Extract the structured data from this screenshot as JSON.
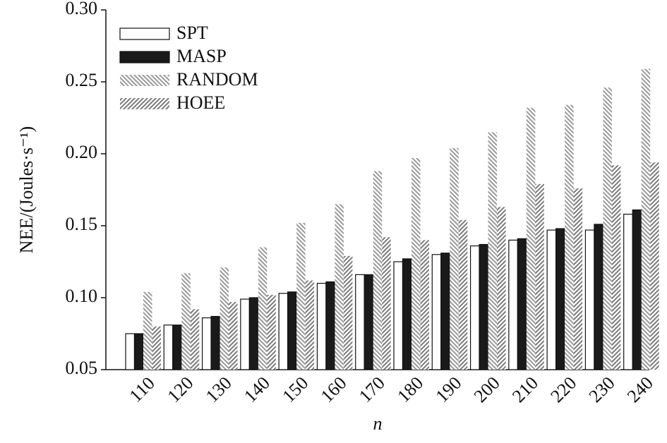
{
  "chart_data": {
    "type": "bar",
    "y_label": "NEE/(Joules·s⁻¹)",
    "x_label": "n",
    "categories": [
      "110",
      "120",
      "130",
      "140",
      "150",
      "160",
      "170",
      "180",
      "190",
      "200",
      "210",
      "220",
      "230",
      "240"
    ],
    "series": [
      {
        "name": "SPT",
        "color": "#ffffff",
        "hatch": "none",
        "values": [
          0.075,
          0.081,
          0.086,
          0.099,
          0.103,
          0.11,
          0.116,
          0.125,
          0.13,
          0.136,
          0.14,
          0.147,
          0.147,
          0.158
        ]
      },
      {
        "name": "MASP",
        "color": "#1a1a1a",
        "hatch": "none",
        "values": [
          0.075,
          0.081,
          0.087,
          0.1,
          0.104,
          0.111,
          0.116,
          0.127,
          0.131,
          0.137,
          0.141,
          0.148,
          0.151,
          0.161
        ]
      },
      {
        "name": "RANDOM",
        "color": "#9a9a9a",
        "hatch": "back",
        "values": [
          0.104,
          0.117,
          0.121,
          0.135,
          0.152,
          0.165,
          0.188,
          0.197,
          0.204,
          0.215,
          0.232,
          0.234,
          0.246,
          0.259
        ]
      },
      {
        "name": "HOEE",
        "color": "#7a7a7a",
        "hatch": "forward",
        "values": [
          0.08,
          0.092,
          0.097,
          0.102,
          0.112,
          0.129,
          0.142,
          0.14,
          0.154,
          0.163,
          0.179,
          0.176,
          0.192,
          0.194
        ]
      }
    ],
    "ylim": [
      0.05,
      0.3
    ],
    "yticks": [
      0.05,
      {
        "value": 0.1,
        "label": "0.10"
      },
      0.15,
      {
        "value": 0.2,
        "label": "0.20"
      },
      0.25,
      {
        "value": 0.3,
        "label": "0.30"
      }
    ],
    "legend": "upper-left"
  }
}
